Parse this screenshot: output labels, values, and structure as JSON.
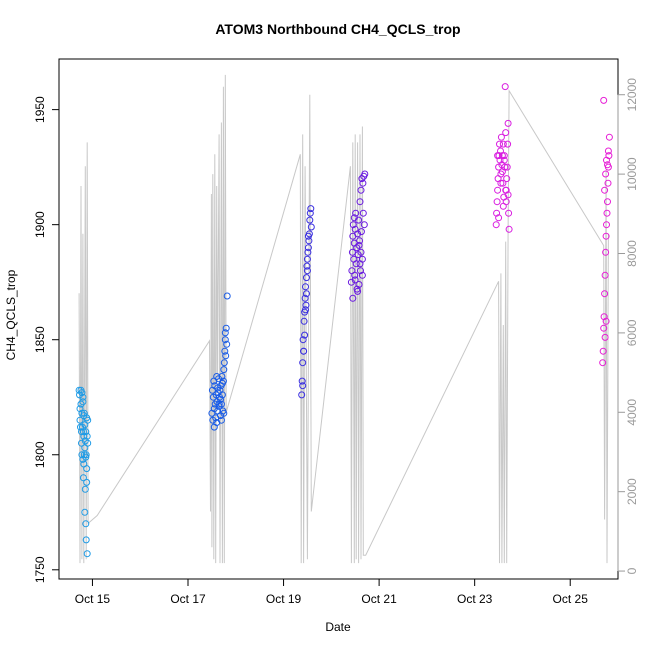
{
  "chart_data": {
    "type": "scatter",
    "title": "ATOM3 Northbound CH4_QCLS_trop",
    "xlabel": "Date",
    "ylabel": "CH4_QCLS_trop",
    "x_ticks": [
      "Oct 15",
      "Oct 17",
      "Oct 19",
      "Oct 21",
      "Oct 23",
      "Oct 25"
    ],
    "x_tick_days": [
      15,
      17,
      19,
      21,
      23,
      25
    ],
    "xlim": [
      14.3,
      26.0
    ],
    "ylim": [
      1746,
      1972
    ],
    "y_ticks": [
      1750,
      1800,
      1850,
      1900,
      1950
    ],
    "y2lim": [
      -200,
      12900
    ],
    "y2_ticks": [
      0,
      2000,
      4000,
      6000,
      8000,
      10000,
      12000
    ],
    "y2_label": "",
    "colors": {
      "line": "#c8c8c8",
      "right_axis": "#9a9a9a",
      "flight1": "#1e9be6",
      "flight2": "#1a5ce6",
      "flight3": "#3a2fe0",
      "flight4": "#6a1ae0",
      "flight5": "#d91ee0",
      "flight6": "#e61ed6"
    },
    "altitude_trace": [
      [
        14.72,
        7000
      ],
      [
        14.74,
        200
      ],
      [
        14.76,
        9700
      ],
      [
        14.78,
        300
      ],
      [
        14.8,
        8500
      ],
      [
        14.82,
        200
      ],
      [
        14.85,
        10200
      ],
      [
        14.87,
        300
      ],
      [
        14.89,
        10800
      ],
      [
        14.91,
        1200
      ],
      [
        15.1,
        1400
      ],
      [
        17.45,
        5800
      ],
      [
        17.47,
        1500
      ],
      [
        17.49,
        9500
      ],
      [
        17.5,
        600
      ],
      [
        17.52,
        10000
      ],
      [
        17.54,
        300
      ],
      [
        17.56,
        10500
      ],
      [
        17.58,
        200
      ],
      [
        17.6,
        9700
      ],
      [
        17.62,
        4800
      ],
      [
        17.65,
        11000
      ],
      [
        17.67,
        200
      ],
      [
        17.7,
        11300
      ],
      [
        17.72,
        200
      ],
      [
        17.74,
        12200
      ],
      [
        17.76,
        200
      ],
      [
        17.78,
        12500
      ],
      [
        17.8,
        4000
      ],
      [
        19.35,
        10500
      ],
      [
        19.37,
        200
      ],
      [
        19.4,
        11000
      ],
      [
        19.42,
        200
      ],
      [
        19.45,
        10200
      ],
      [
        19.5,
        300
      ],
      [
        19.55,
        12000
      ],
      [
        19.58,
        1500
      ],
      [
        20.4,
        10200
      ],
      [
        20.42,
        200
      ],
      [
        20.45,
        10800
      ],
      [
        20.48,
        200
      ],
      [
        20.5,
        11000
      ],
      [
        20.52,
        300
      ],
      [
        20.55,
        10800
      ],
      [
        20.57,
        200
      ],
      [
        20.6,
        11000
      ],
      [
        20.62,
        300
      ],
      [
        20.65,
        11200
      ],
      [
        20.67,
        400
      ],
      [
        20.72,
        400
      ],
      [
        23.5,
        7300
      ],
      [
        23.52,
        200
      ],
      [
        23.55,
        7500
      ],
      [
        23.57,
        200
      ],
      [
        23.6,
        6200
      ],
      [
        23.62,
        200
      ],
      [
        23.65,
        8300
      ],
      [
        23.67,
        200
      ],
      [
        23.7,
        8600
      ],
      [
        23.72,
        12100
      ],
      [
        25.7,
        8200
      ],
      [
        25.72,
        1300
      ],
      [
        25.75,
        10100
      ],
      [
        25.77,
        200
      ],
      [
        25.8,
        8500
      ]
    ],
    "series": [
      {
        "color": "#1e9be6",
        "x": [
          14.72,
          14.73,
          14.74,
          14.74,
          14.75,
          14.76,
          14.76,
          14.77,
          14.77,
          14.78,
          14.78,
          14.79,
          14.8,
          14.8,
          14.81,
          14.81,
          14.82,
          14.82,
          14.83,
          14.83,
          14.84,
          14.84,
          14.85,
          14.85,
          14.86,
          14.86,
          14.87,
          14.87,
          14.88,
          14.88,
          14.89,
          14.89,
          14.9,
          14.9,
          14.78,
          14.8,
          14.82,
          14.84,
          14.86,
          14.88
        ],
        "y": [
          1828,
          1826,
          1820,
          1815,
          1812,
          1828,
          1822,
          1810,
          1805,
          1818,
          1800,
          1812,
          1825,
          1798,
          1810,
          1790,
          1808,
          1796,
          1818,
          1800,
          1813,
          1775,
          1806,
          1785,
          1810,
          1770,
          1800,
          1763,
          1816,
          1794,
          1808,
          1757,
          1815,
          1805,
          1827,
          1823,
          1817,
          1803,
          1799,
          1788
        ]
      },
      {
        "color": "#1a5ce6",
        "x": [
          17.5,
          17.51,
          17.52,
          17.53,
          17.54,
          17.55,
          17.56,
          17.57,
          17.58,
          17.59,
          17.6,
          17.61,
          17.62,
          17.63,
          17.64,
          17.65,
          17.66,
          17.67,
          17.68,
          17.69,
          17.7,
          17.71,
          17.72,
          17.73,
          17.74,
          17.75,
          17.76,
          17.77,
          17.78,
          17.79,
          17.8,
          17.81,
          17.82,
          17.55,
          17.6,
          17.65,
          17.7,
          17.75,
          17.62,
          17.68,
          17.72,
          17.78
        ],
        "y": [
          1818,
          1828,
          1815,
          1825,
          1832,
          1820,
          1830,
          1822,
          1816,
          1826,
          1834,
          1823,
          1819,
          1827,
          1833,
          1821,
          1825,
          1828,
          1817,
          1830,
          1822,
          1834,
          1826,
          1819,
          1832,
          1837,
          1840,
          1845,
          1850,
          1843,
          1855,
          1848,
          1869,
          1812,
          1814,
          1822,
          1815,
          1818,
          1829,
          1824,
          1831,
          1853
        ]
      },
      {
        "color": "#3a2fe0",
        "x": [
          19.38,
          19.39,
          19.4,
          19.41,
          19.42,
          19.43,
          19.44,
          19.45,
          19.46,
          19.47,
          19.48,
          19.49,
          19.5,
          19.51,
          19.52,
          19.53,
          19.54,
          19.55,
          19.56,
          19.57,
          19.58,
          19.4,
          19.42,
          19.44,
          19.46,
          19.48,
          19.5,
          19.52
        ],
        "y": [
          1826,
          1832,
          1840,
          1850,
          1845,
          1858,
          1862,
          1868,
          1873,
          1865,
          1877,
          1882,
          1885,
          1888,
          1890,
          1893,
          1896,
          1902,
          1905,
          1907,
          1899,
          1830,
          1845,
          1852,
          1863,
          1870,
          1880,
          1895
        ]
      },
      {
        "color": "#6a1ae0",
        "x": [
          20.42,
          20.43,
          20.44,
          20.45,
          20.46,
          20.47,
          20.48,
          20.49,
          20.5,
          20.51,
          20.52,
          20.53,
          20.54,
          20.55,
          20.56,
          20.57,
          20.58,
          20.59,
          20.6,
          20.61,
          20.62,
          20.63,
          20.64,
          20.65,
          20.66,
          20.67,
          20.68,
          20.69,
          20.7,
          20.45,
          20.5,
          20.55,
          20.6,
          20.65,
          20.48,
          20.58,
          20.62
        ],
        "y": [
          1875,
          1880,
          1888,
          1895,
          1900,
          1885,
          1892,
          1878,
          1898,
          1905,
          1883,
          1890,
          1872,
          1896,
          1887,
          1902,
          1874,
          1893,
          1910,
          1880,
          1915,
          1897,
          1920,
          1885,
          1918,
          1905,
          1921,
          1900,
          1922,
          1868,
          1876,
          1871,
          1883,
          1878,
          1903,
          1891,
          1888
        ]
      },
      {
        "color": "#d91ee0",
        "x": [
          23.45,
          23.46,
          23.47,
          23.48,
          23.49,
          23.5,
          23.51,
          23.52,
          23.53,
          23.54,
          23.55,
          23.56,
          23.57,
          23.58,
          23.59,
          23.6,
          23.61,
          23.62,
          23.63,
          23.64,
          23.65,
          23.66,
          23.67,
          23.68,
          23.69,
          23.7,
          23.71,
          23.72,
          23.5,
          23.55,
          23.6,
          23.65,
          23.7,
          23.48,
          23.58,
          23.62,
          23.66
        ],
        "y": [
          1900,
          1905,
          1910,
          1915,
          1920,
          1925,
          1930,
          1935,
          1928,
          1932,
          1922,
          1938,
          1926,
          1930,
          1918,
          1935,
          1912,
          1930,
          1925,
          1960,
          1940,
          1915,
          1920,
          1925,
          1935,
          1944,
          1905,
          1898,
          1903,
          1918,
          1908,
          1915,
          1913,
          1930,
          1923,
          1928,
          1910
        ]
      },
      {
        "color": "#e61ed6",
        "x": [
          25.68,
          25.69,
          25.7,
          25.71,
          25.72,
          25.73,
          25.74,
          25.75,
          25.76,
          25.77,
          25.78,
          25.79,
          25.8,
          25.81,
          25.82,
          25.7,
          25.72,
          25.74,
          25.76,
          25.78,
          25.8,
          25.73,
          25.75
        ],
        "y": [
          1840,
          1845,
          1855,
          1860,
          1870,
          1878,
          1888,
          1895,
          1900,
          1905,
          1910,
          1918,
          1925,
          1930,
          1938,
          1954,
          1915,
          1922,
          1928,
          1926,
          1932,
          1851,
          1858
        ]
      }
    ]
  }
}
